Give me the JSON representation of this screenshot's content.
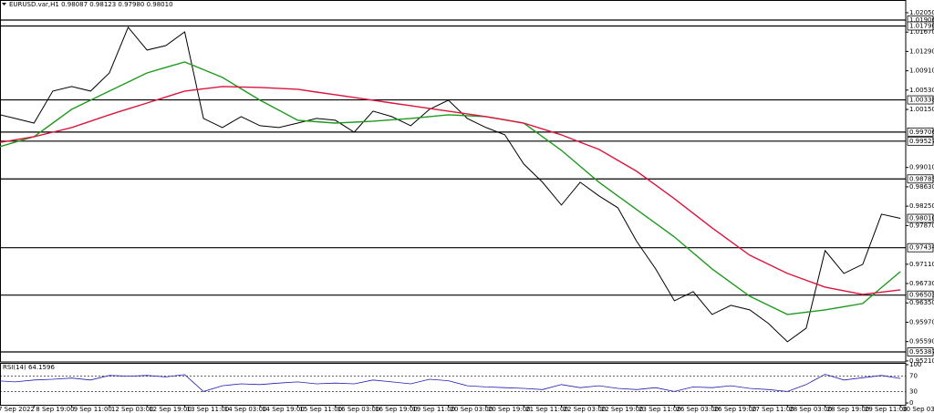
{
  "chart_data": {
    "type": "line",
    "title": "EURUSD.var,H1 0.98087 0.98123 0.97980 0.98010",
    "categories": [
      "7 Sep 2022",
      null,
      "8 Sep 19:00",
      null,
      "9 Sep 11:00",
      null,
      "12 Sep 03:00",
      null,
      "12 Sep 19:00",
      null,
      "13 Sep 11:00",
      null,
      "14 Sep 03:00",
      null,
      "14 Sep 19:00",
      null,
      "15 Sep 11:00",
      null,
      "16 Sep 03:00",
      null,
      "16 Sep 19:00",
      null,
      "19 Sep 11:00",
      null,
      "20 Sep 03:00",
      null,
      "20 Sep 19:00",
      null,
      "21 Sep 11:00",
      null,
      "22 Sep 03:00",
      null,
      "22 Sep 19:00",
      null,
      "23 Sep 11:00",
      null,
      "26 Sep 03:00",
      null,
      "26 Sep 19:00",
      null,
      "27 Sep 11:00",
      null,
      "28 Sep 03:00",
      null,
      "28 Sep 19:00",
      null,
      "29 Sep 11:00",
      null,
      "30 Sep 03:00"
    ],
    "series": [
      {
        "color": "#000000",
        "values": [
          1.00063,
          0.99973,
          0.99883,
          1.0051,
          1.006,
          1.0051,
          1.00868,
          1.01764,
          1.01316,
          1.01405,
          1.01674,
          0.99973,
          0.99794,
          1.00009,
          0.9983,
          0.99794,
          0.99883,
          0.99973,
          0.99937,
          0.99704,
          1.00116,
          1.00009,
          0.9983,
          1.00152,
          1.00331,
          0.99973,
          0.99794,
          0.99651,
          0.99078,
          0.9872,
          0.98272,
          0.9872,
          0.98451,
          0.98218,
          0.97556,
          0.97019,
          0.96392,
          0.96571,
          0.96123,
          0.96302,
          0.96213,
          0.95944,
          0.95586,
          0.95855,
          0.97377,
          0.96929,
          0.97108,
          0.98093,
          0.9801
        ]
      },
      {
        "color": "#1e9a1e",
        "values": [
          0.994,
          0.99507,
          0.99615,
          0.99883,
          1.00152,
          1.00331,
          1.0051,
          1.00689,
          1.00868,
          1.00976,
          1.01083,
          1.00931,
          1.00779,
          1.00555,
          1.00331,
          1.00134,
          0.99937,
          0.9991,
          0.99883,
          0.99901,
          0.99919,
          0.99946,
          0.99973,
          1.00009,
          1.00045,
          1.00027,
          1.00009,
          0.99946,
          0.99883,
          0.99615,
          0.99346,
          0.99033,
          0.9872,
          0.98451,
          0.98183,
          0.97914,
          0.97645,
          0.97332,
          0.97019,
          0.9675,
          0.96482,
          0.96302,
          0.96123,
          0.96168,
          0.96213,
          0.96276,
          0.96338,
          0.96652,
          0.96965
        ]
      },
      {
        "color": "#dc143c",
        "values": [
          0.9949,
          0.99552,
          0.99615,
          0.99704,
          0.99794,
          0.99919,
          1.00045,
          1.00161,
          1.00277,
          1.00394,
          1.0051,
          1.00555,
          1.006,
          1.00591,
          1.00582,
          1.00564,
          1.00546,
          1.00492,
          1.00439,
          1.00385,
          1.00331,
          1.00277,
          1.00224,
          1.0017,
          1.00116,
          1.00063,
          1.00009,
          0.99946,
          0.99883,
          0.99767,
          0.99651,
          0.99507,
          0.99364,
          0.99149,
          0.98935,
          0.98666,
          0.98397,
          0.98111,
          0.97824,
          0.97556,
          0.97287,
          0.97108,
          0.96929,
          0.96795,
          0.9666,
          0.96589,
          0.96517,
          0.96562,
          0.96607
        ]
      }
    ],
    "ylim": [
      0.9519,
      1.023
    ],
    "yticks": [
      {
        "value": 1.0205,
        "label": "1.02050"
      },
      {
        "value": 1.0167,
        "label": "1.01670"
      },
      {
        "value": 1.0129,
        "label": "1.01290"
      },
      {
        "value": 1.0091,
        "label": "1.00910"
      },
      {
        "value": 1.0053,
        "label": "1.00530"
      },
      {
        "value": 1.0015,
        "label": "1.00150"
      },
      {
        "value": 0.9901,
        "label": "0.99010"
      },
      {
        "value": 0.9863,
        "label": "0.98630"
      },
      {
        "value": 0.9825,
        "label": "0.98250"
      },
      {
        "value": 0.9787,
        "label": "0.97870"
      },
      {
        "value": 0.9711,
        "label": "0.97110"
      },
      {
        "value": 0.9673,
        "label": "0.96730"
      },
      {
        "value": 0.9635,
        "label": "0.96350"
      },
      {
        "value": 0.9597,
        "label": "0.95970"
      },
      {
        "value": 0.9559,
        "label": "0.95590"
      },
      {
        "value": 0.9521,
        "label": "0.95210"
      }
    ],
    "levels": [
      {
        "value": 1.01906,
        "label": "1.01906"
      },
      {
        "value": 1.0179,
        "label": "1.01790"
      },
      {
        "value": 1.00338,
        "label": "1.00338"
      },
      {
        "value": 0.99706,
        "label": "0.99706"
      },
      {
        "value": 0.99527,
        "label": "0.99527"
      },
      {
        "value": 0.98785,
        "label": "0.98785"
      },
      {
        "value": 0.97434,
        "label": "0.97434"
      },
      {
        "value": 0.96503,
        "label": "0.96503"
      },
      {
        "value": 0.95387,
        "label": "0.95387"
      }
    ],
    "current": {
      "value": 0.9801,
      "label": "0.98010"
    },
    "rsi": {
      "label": "RSI(14) 64.1596",
      "color": "#1f1fb4",
      "values": [
        58,
        55,
        60,
        62,
        65,
        60,
        72,
        70,
        72,
        68,
        74,
        30,
        45,
        50,
        48,
        52,
        55,
        50,
        52,
        50,
        60,
        55,
        50,
        62,
        58,
        45,
        42,
        40,
        38,
        35,
        48,
        40,
        45,
        38,
        35,
        40,
        30,
        42,
        40,
        45,
        38,
        35,
        30,
        48,
        75,
        60,
        66,
        72,
        64.1596
      ],
      "ylim": [
        0,
        100
      ],
      "yticks": [
        100,
        70,
        30,
        0
      ]
    }
  }
}
